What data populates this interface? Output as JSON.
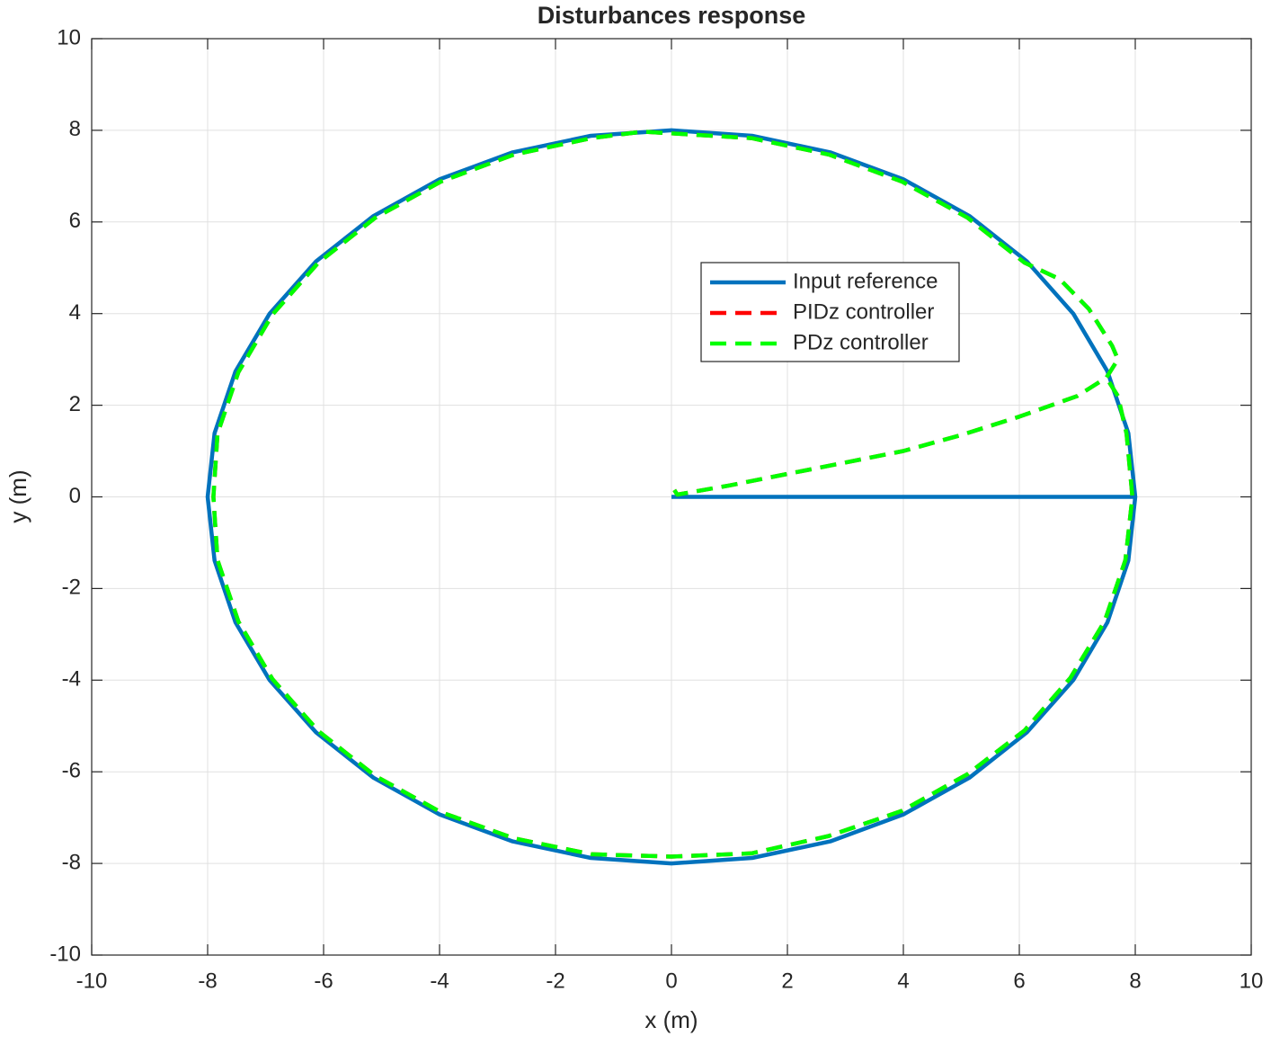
{
  "chart_data": {
    "type": "line",
    "title": "Disturbances response",
    "x_label": "x (m)",
    "y_label": "y (m)",
    "xlim": [
      -10,
      10
    ],
    "ylim": [
      -10,
      10
    ],
    "xticks": [
      -10,
      -8,
      -6,
      -4,
      -2,
      0,
      2,
      4,
      6,
      8,
      10
    ],
    "yticks": [
      -10,
      -8,
      -6,
      -4,
      -2,
      0,
      2,
      4,
      6,
      8,
      10
    ],
    "grid": true,
    "series": [
      {
        "name": "Input reference",
        "color": "#0072bd",
        "style": "solid",
        "x": [
          0,
          8,
          7.88,
          7.52,
          6.93,
          6.13,
          5.14,
          4,
          2.74,
          1.39,
          0,
          -1.39,
          -2.74,
          -4,
          -5.14,
          -6.13,
          -6.93,
          -7.52,
          -7.88,
          -8,
          -7.88,
          -7.52,
          -6.93,
          -6.13,
          -5.14,
          -4,
          -2.74,
          -1.39,
          0,
          1.39,
          2.74,
          4,
          5.14,
          6.13,
          6.93,
          7.52,
          7.88,
          8
        ],
        "values": [
          0,
          0,
          1.39,
          2.74,
          4,
          5.14,
          6.13,
          6.93,
          7.52,
          7.88,
          8,
          7.88,
          7.52,
          6.93,
          6.13,
          5.14,
          4,
          2.74,
          1.39,
          0,
          -1.39,
          -2.74,
          -4,
          -5.14,
          -6.13,
          -6.93,
          -7.52,
          -7.88,
          -8,
          -7.88,
          -7.52,
          -6.93,
          -6.13,
          -5.14,
          -4,
          -2.74,
          -1.39,
          0
        ]
      },
      {
        "name": "PIDz controller",
        "color": "#ff0000",
        "style": "dashed",
        "x": [
          0.05,
          0.1,
          1,
          2,
          3,
          4,
          5,
          6,
          7,
          7.5,
          7.7,
          7.6,
          7.2,
          6.7,
          6.09,
          5.11,
          3.98,
          2.72,
          1.38,
          -0.5,
          -1.38,
          -2.72,
          -3.98,
          -5.11,
          -6.09,
          -6.88,
          -7.47,
          -7.83,
          -7.9,
          -7.83,
          -7.47,
          -6.88,
          -6.09,
          -5.11,
          -3.98,
          -2.72,
          -1.38,
          0,
          1.38,
          2.72,
          3.98,
          5.11,
          6.09,
          6.88,
          7.47,
          7.83,
          7.95,
          7.85,
          7.7,
          7.5
        ],
        "values": [
          0.15,
          0.05,
          0.25,
          0.5,
          0.75,
          1.0,
          1.35,
          1.75,
          2.2,
          2.6,
          3.0,
          3.3,
          4.1,
          4.75,
          5.11,
          6.09,
          6.88,
          7.47,
          7.83,
          7.97,
          7.83,
          7.47,
          6.88,
          6.09,
          5.11,
          3.98,
          2.72,
          1.38,
          0,
          -1.38,
          -2.72,
          -3.98,
          -5.11,
          -6.09,
          -6.88,
          -7.45,
          -7.8,
          -7.85,
          -7.78,
          -7.4,
          -6.85,
          -6.05,
          -5.1,
          -3.95,
          -2.72,
          -1.38,
          0,
          1.38,
          2.2,
          2.6
        ]
      },
      {
        "name": "PDz controller",
        "color": "#00ff00",
        "style": "dashed",
        "x": [
          0.05,
          0.1,
          1,
          2,
          3,
          4,
          5,
          6,
          7,
          7.5,
          7.7,
          7.6,
          7.2,
          6.7,
          6.09,
          5.11,
          3.98,
          2.72,
          1.38,
          -0.5,
          -1.38,
          -2.72,
          -3.98,
          -5.11,
          -6.09,
          -6.88,
          -7.47,
          -7.83,
          -7.9,
          -7.83,
          -7.47,
          -6.88,
          -6.09,
          -5.11,
          -3.98,
          -2.72,
          -1.38,
          0,
          1.38,
          2.72,
          3.98,
          5.11,
          6.09,
          6.88,
          7.47,
          7.83,
          7.95,
          7.85,
          7.7,
          7.5
        ],
        "values": [
          0.15,
          0.05,
          0.25,
          0.5,
          0.75,
          1.0,
          1.35,
          1.75,
          2.2,
          2.6,
          3.0,
          3.3,
          4.1,
          4.75,
          5.11,
          6.09,
          6.88,
          7.47,
          7.83,
          7.97,
          7.83,
          7.47,
          6.88,
          6.09,
          5.11,
          3.98,
          2.72,
          1.38,
          0,
          -1.38,
          -2.72,
          -3.98,
          -5.11,
          -6.09,
          -6.88,
          -7.45,
          -7.8,
          -7.85,
          -7.78,
          -7.4,
          -6.85,
          -6.05,
          -5.1,
          -3.95,
          -2.72,
          -1.38,
          0,
          1.38,
          2.2,
          2.6
        ]
      }
    ]
  }
}
